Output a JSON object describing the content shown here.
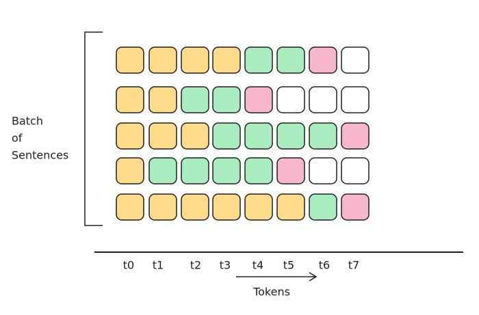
{
  "batch_label": [
    "Batch",
    "of",
    "Sentences"
  ],
  "axis": {
    "ticks": [
      "t0",
      "t1",
      "t2",
      "t3",
      "t4",
      "t5",
      "t6",
      "t7"
    ],
    "label": "Tokens"
  },
  "rows": [
    [
      "#fddb8a",
      "#fddb8a",
      "#fddb8a",
      "#fddb8a",
      "#a8ecbf",
      "#a8ecbf",
      "#f7b6cb",
      "#ffffff"
    ],
    [
      "#fddb8a",
      "#fddb8a",
      "#a8ecbf",
      "#a8ecbf",
      "#f7b6cb",
      "#ffffff",
      "#ffffff",
      "#ffffff"
    ],
    [
      "#fddb8a",
      "#fddb8a",
      "#fddb8a",
      "#a8ecbf",
      "#a8ecbf",
      "#a8ecbf",
      "#a8ecbf",
      "#f7b6cb"
    ],
    [
      "#fddb8a",
      "#a8ecbf",
      "#a8ecbf",
      "#a8ecbf",
      "#a8ecbf",
      "#f7b6cb",
      "#ffffff",
      "#ffffff"
    ],
    [
      "#fddb8a",
      "#fddb8a",
      "#fddb8a",
      "#fddb8a",
      "#fddb8a",
      "#fddb8a",
      "#a8ecbf",
      "#f7b6cb"
    ]
  ]
}
